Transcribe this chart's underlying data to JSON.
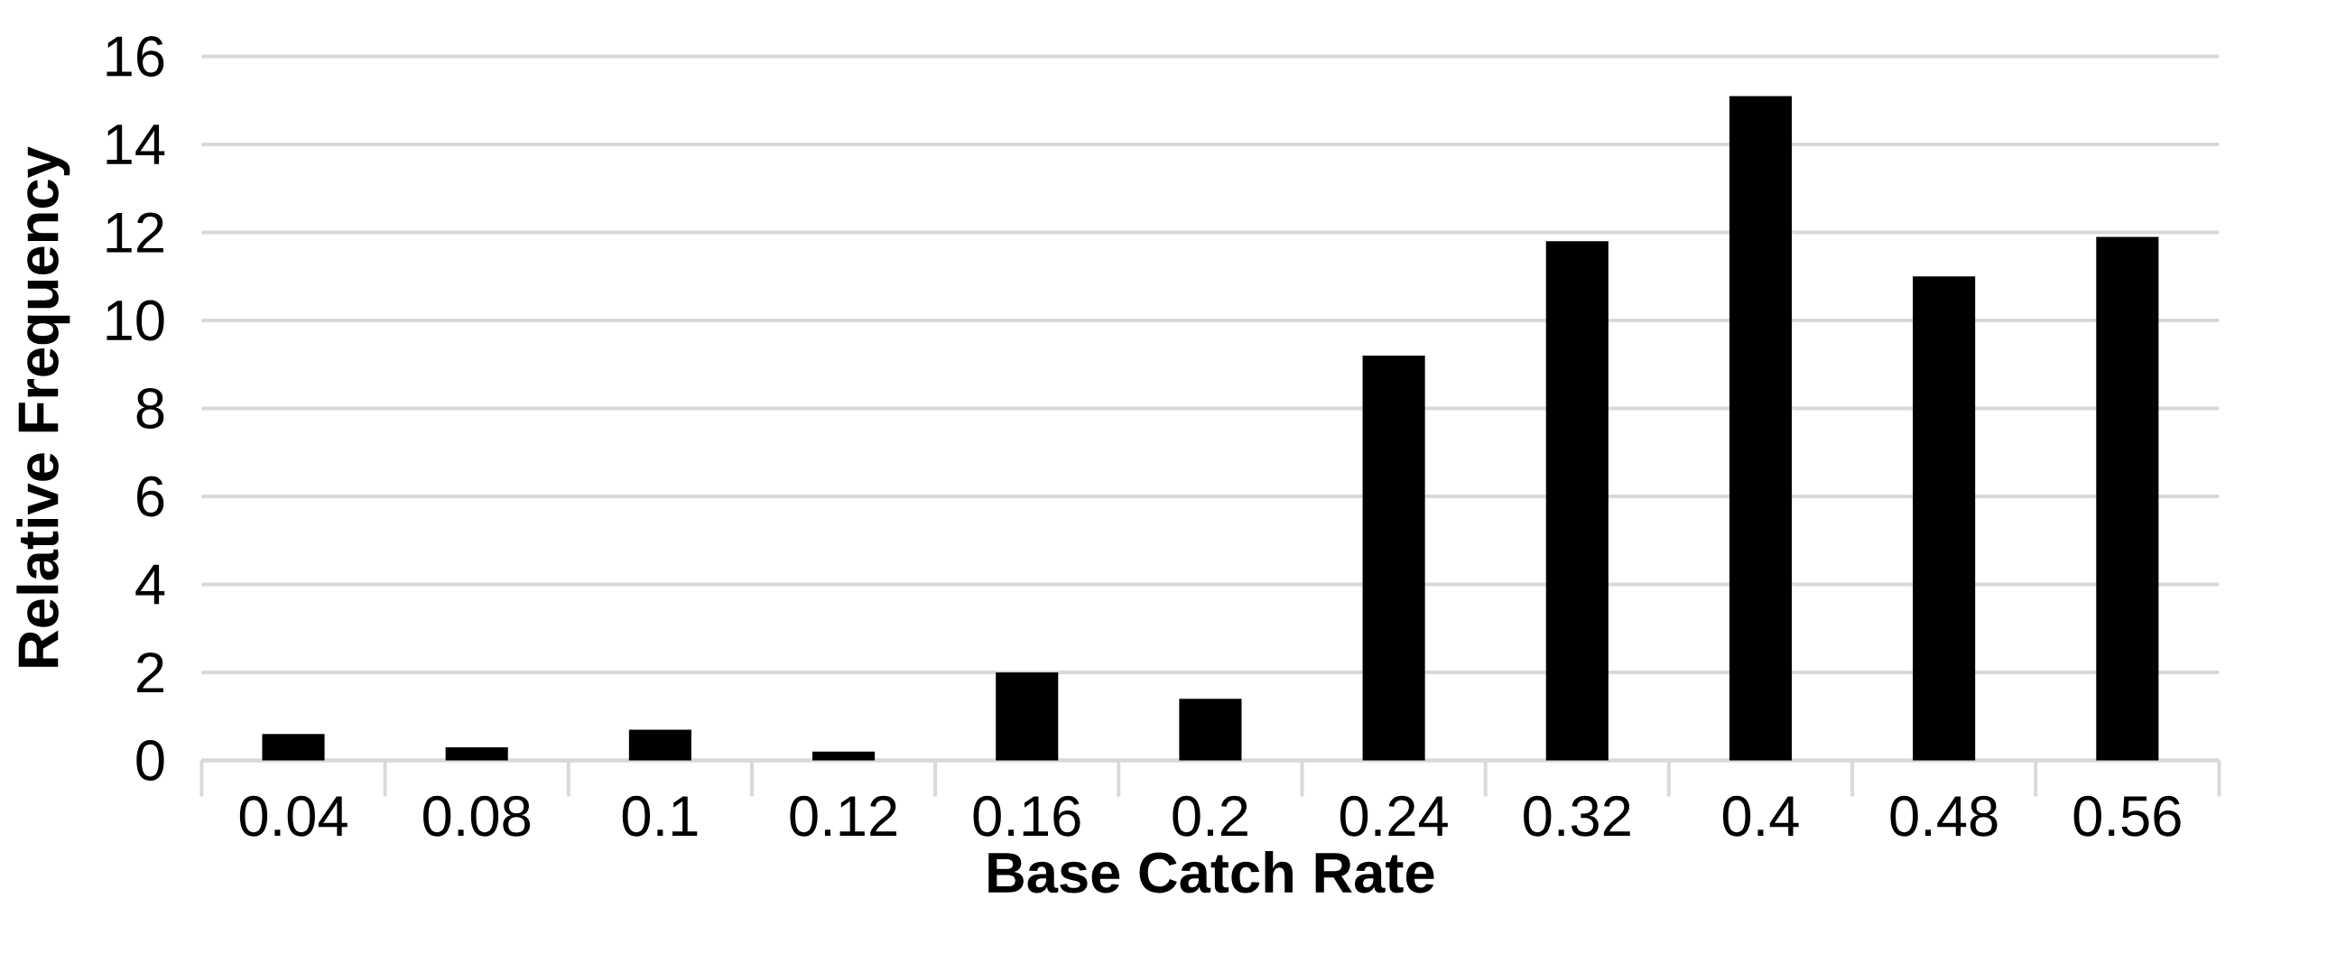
{
  "chart_data": {
    "type": "bar",
    "xlabel": "Base Catch Rate",
    "ylabel": "Relative Frequency",
    "categories": [
      "0.04",
      "0.08",
      "0.1",
      "0.12",
      "0.16",
      "0.2",
      "0.24",
      "0.32",
      "0.4",
      "0.48",
      "0.56"
    ],
    "values": [
      0.6,
      0.3,
      0.7,
      0.2,
      2.0,
      1.4,
      9.2,
      11.8,
      15.1,
      11.0,
      11.9
    ],
    "color": "#000000",
    "ylim": [
      0,
      16
    ],
    "yticks": [
      0,
      2,
      4,
      6,
      8,
      10,
      12,
      14,
      16
    ],
    "grid": "y"
  }
}
